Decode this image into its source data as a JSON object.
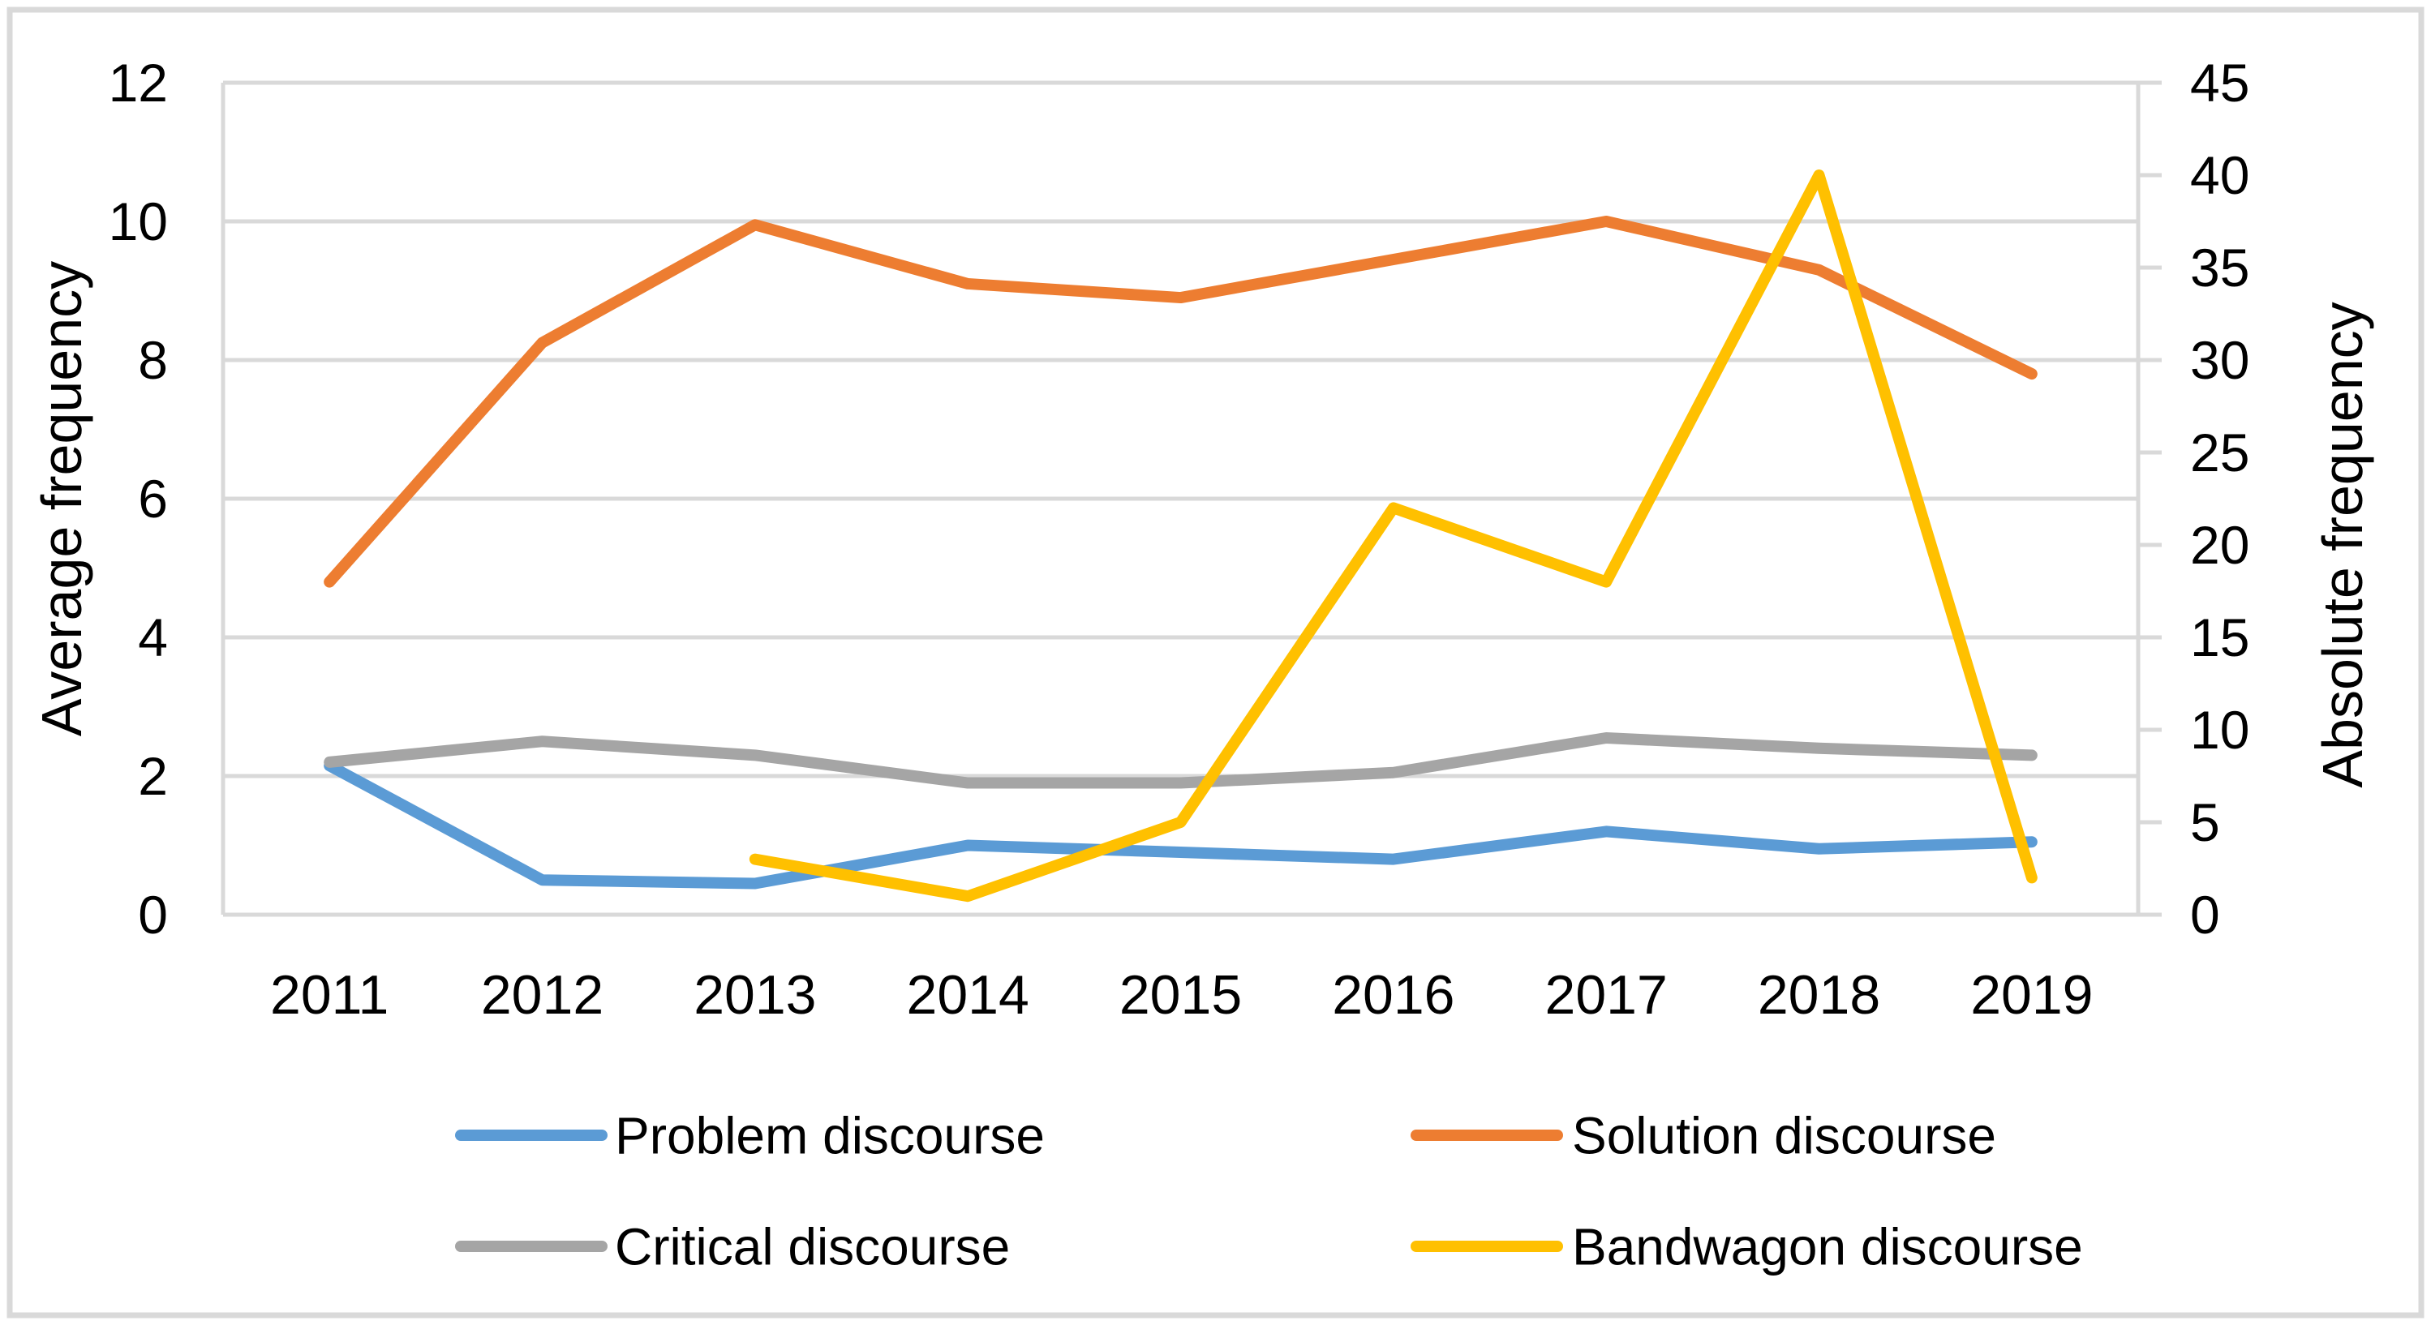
{
  "figure": {
    "background": "#FFFFFF",
    "border_color": "#D9D9D9"
  },
  "chart_data": {
    "type": "line",
    "categories": [
      "2011",
      "2012",
      "2013",
      "2014",
      "2015",
      "2016",
      "2017",
      "2018",
      "2019"
    ],
    "series": [
      {
        "name": "Problem discourse",
        "color": "#5B9BD5",
        "axis": "left",
        "values": [
          2.15,
          0.5,
          0.45,
          1.0,
          0.9,
          0.8,
          1.2,
          0.95,
          1.05
        ]
      },
      {
        "name": "Solution discourse",
        "color": "#ED7D31",
        "axis": "left",
        "values": [
          4.8,
          8.25,
          9.95,
          9.1,
          8.9,
          9.45,
          10.0,
          9.3,
          7.8
        ]
      },
      {
        "name": "Critical discourse",
        "color": "#A5A5A5",
        "axis": "left",
        "values": [
          2.2,
          2.5,
          2.3,
          1.9,
          1.9,
          2.05,
          2.55,
          2.4,
          2.3
        ]
      },
      {
        "name": "Bandwagon discourse",
        "color": "#FFC000",
        "axis": "right",
        "values": [
          null,
          null,
          3,
          1,
          5,
          22,
          18,
          40,
          2
        ]
      }
    ],
    "left_axis": {
      "title": "Average frequency",
      "min": 0,
      "max": 12,
      "step": 2,
      "ticks": [
        0,
        2,
        4,
        6,
        8,
        10,
        12
      ]
    },
    "right_axis": {
      "title": "Absolute frequency",
      "min": 0,
      "max": 45,
      "step": 5,
      "ticks": [
        0,
        5,
        10,
        15,
        20,
        25,
        30,
        35,
        40,
        45
      ]
    },
    "grid": {
      "gridline_color": "#D9D9D9",
      "axis_line_color": "#D9D9D9",
      "grid_on": true
    },
    "legend": {
      "position": "bottom",
      "entries": [
        "Problem discourse",
        "Solution discourse",
        "Critical discourse",
        "Bandwagon discourse"
      ]
    }
  }
}
